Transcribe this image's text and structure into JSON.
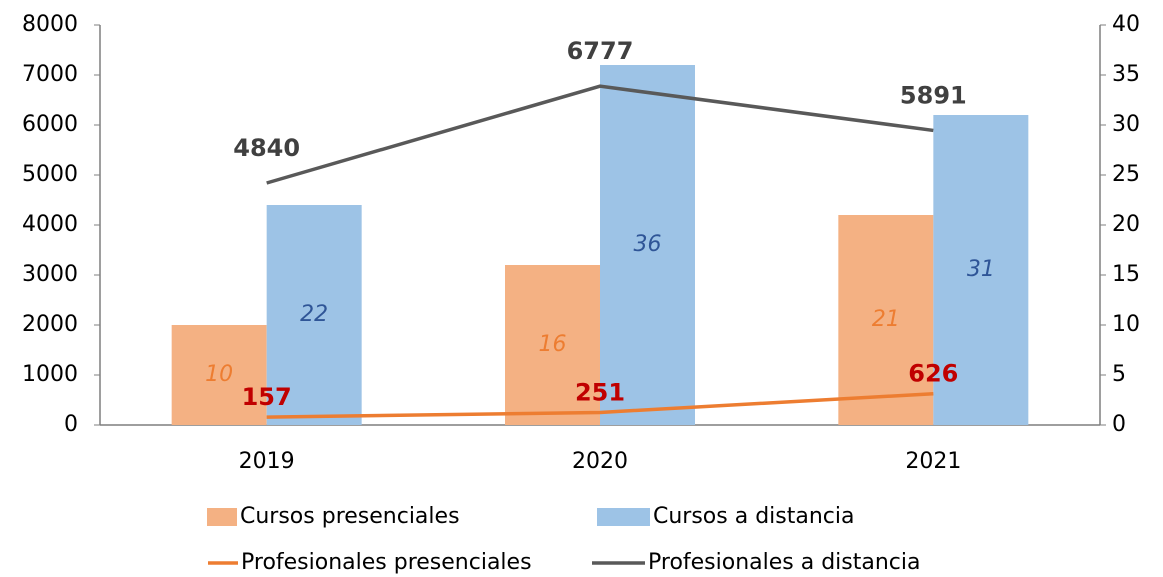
{
  "chart_data": {
    "type": "bar",
    "categories": [
      "2019",
      "2020",
      "2021"
    ],
    "series": [
      {
        "name": "Cursos presenciales",
        "type": "bar",
        "axis": "y2",
        "color": "#f4b183",
        "label_color": "#ed7d31",
        "values": [
          10,
          16,
          21
        ]
      },
      {
        "name": "Cursos a distancia",
        "type": "bar",
        "axis": "y2",
        "color": "#9dc3e6",
        "label_color": "#2f5597",
        "values": [
          22,
          36,
          31
        ]
      },
      {
        "name": "Profesionales presenciales",
        "type": "line",
        "color": "#ed7d31",
        "label_color": "#c00000",
        "values": [
          157,
          251,
          626
        ]
      },
      {
        "name": "Profesionales a distancia",
        "type": "line",
        "color": "#595959",
        "label_color": "#404040",
        "values": [
          4840,
          6777,
          5891
        ]
      }
    ],
    "ylim": [
      0,
      8000
    ],
    "yticks": [
      0,
      1000,
      2000,
      3000,
      4000,
      5000,
      6000,
      7000,
      8000
    ],
    "y2lim": [
      0,
      40
    ],
    "y2ticks": [
      0,
      5,
      10,
      15,
      20,
      25,
      30,
      35,
      40
    ]
  }
}
